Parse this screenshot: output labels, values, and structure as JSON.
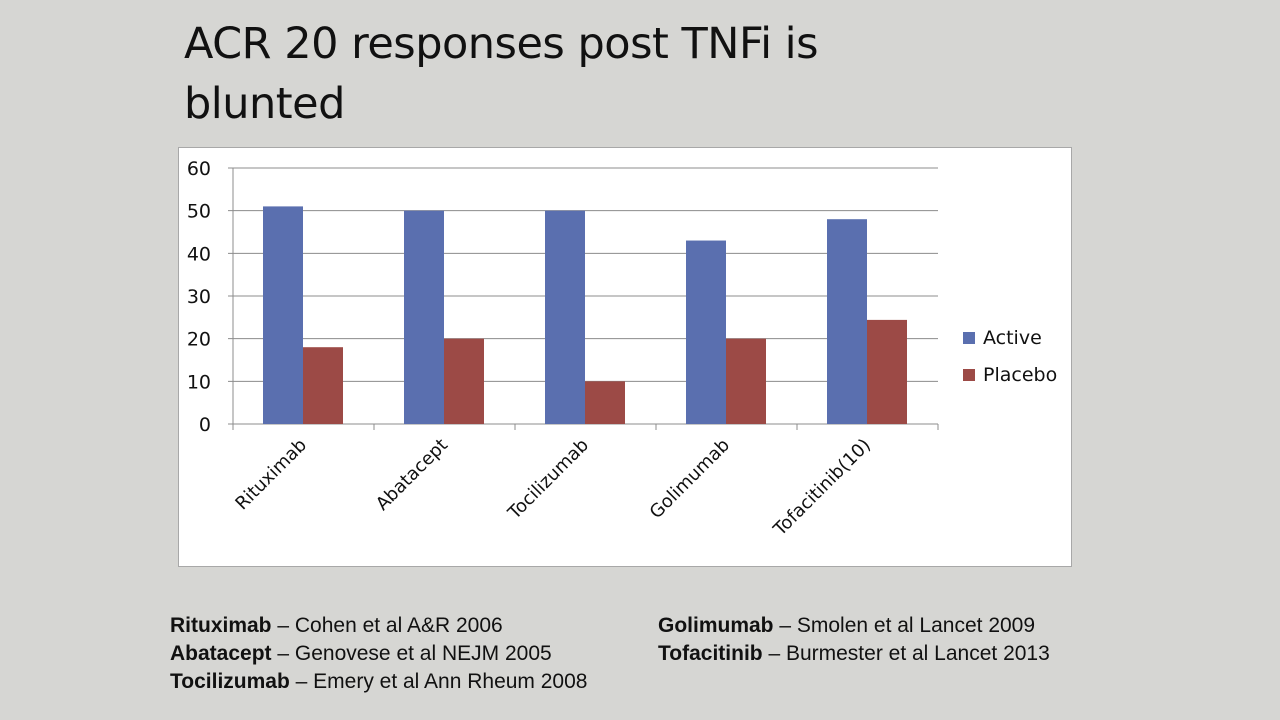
{
  "title": "ACR 20 responses post TNFi is blunted",
  "chart_data": {
    "type": "bar",
    "title": "",
    "xlabel": "",
    "ylabel": "",
    "ylim": [
      0,
      60
    ],
    "yticks": [
      "0",
      "10",
      "20",
      "30",
      "40",
      "50",
      "60"
    ],
    "categories": [
      "Rituximab",
      "Abatacept",
      "Tocilizumab",
      "Golimumab",
      "Tofacitinib(10)"
    ],
    "series": [
      {
        "name": "Active",
        "color": "#5a6faf",
        "values": [
          51,
          50,
          50,
          43,
          48
        ]
      },
      {
        "name": "Placebo",
        "color": "#9c4a46",
        "values": [
          18,
          20,
          10,
          20,
          24.4
        ]
      }
    ],
    "grid": true,
    "legend": "right"
  },
  "references": {
    "left": [
      {
        "drug": "Rituximab",
        "cite": " – Cohen et al A&R 2006"
      },
      {
        "drug": "Abatacept",
        "cite": " – Genovese et al NEJM 2005"
      },
      {
        "drug": "Tocilizumab",
        "cite": " – Emery et al Ann Rheum 2008"
      }
    ],
    "right": [
      {
        "drug": "Golimumab",
        "cite": " – Smolen et al  Lancet 2009"
      },
      {
        "drug": "Tofacitinib",
        "cite": " – Burmester et al  Lancet 2013"
      }
    ]
  }
}
